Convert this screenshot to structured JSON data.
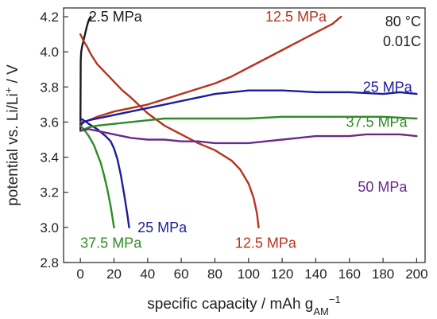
{
  "chart_data": {
    "type": "line",
    "xlabel": "specific capacity / mAh g",
    "xlabel_sub": "AM",
    "xlabel_sup": "−1",
    "ylabel": "potential vs. Li/Li",
    "ylabel_sup": "+",
    "ylabel_tail": " / V",
    "xlim": [
      -10,
      205
    ],
    "ylim": [
      2.8,
      4.25
    ],
    "xticks": [
      0,
      20,
      40,
      60,
      80,
      100,
      120,
      140,
      160,
      180,
      200
    ],
    "yticks": [
      2.8,
      3.0,
      3.2,
      3.4,
      3.6,
      3.8,
      4.0,
      4.2
    ],
    "grid": false,
    "conditions": [
      "80 °C",
      "0.01C"
    ],
    "colors": {
      "2.5 MPa": "#1a1a1a",
      "12.5 MPa": "#b5341c",
      "25 MPa": "#1c1c9c",
      "37.5 MPa": "#2e8b25",
      "50 MPa": "#6a2a8a"
    },
    "series": [
      {
        "name": "2.5 MPa",
        "kind": "charge",
        "x": [
          0,
          0.2,
          0.5,
          1,
          2,
          3,
          4,
          5,
          6
        ],
        "y": [
          3.55,
          3.95,
          4.0,
          4.03,
          4.07,
          4.11,
          4.15,
          4.18,
          4.2
        ]
      },
      {
        "name": "12.5 MPa",
        "kind": "charge",
        "x": [
          0,
          2,
          5,
          10,
          20,
          30,
          40,
          50,
          60,
          70,
          80,
          90,
          100,
          110,
          120,
          130,
          140,
          150,
          155
        ],
        "y": [
          3.6,
          3.6,
          3.61,
          3.63,
          3.66,
          3.68,
          3.7,
          3.73,
          3.76,
          3.79,
          3.82,
          3.86,
          3.91,
          3.96,
          4.01,
          4.06,
          4.11,
          4.16,
          4.2
        ]
      },
      {
        "name": "12.5 MPa",
        "kind": "discharge",
        "x": [
          0,
          1,
          2,
          4,
          6,
          10,
          15,
          20,
          25,
          30,
          40,
          50,
          60,
          70,
          80,
          90,
          95,
          100,
          103,
          105,
          106
        ],
        "y": [
          4.1,
          4.08,
          4.06,
          4.03,
          3.99,
          3.93,
          3.88,
          3.83,
          3.78,
          3.74,
          3.65,
          3.58,
          3.53,
          3.48,
          3.44,
          3.38,
          3.33,
          3.25,
          3.17,
          3.08,
          3.0
        ]
      },
      {
        "name": "25 MPa",
        "kind": "charge",
        "x": [
          0,
          2,
          5,
          10,
          20,
          30,
          40,
          50,
          60,
          70,
          80,
          90,
          100,
          110,
          120,
          140,
          160,
          180,
          190,
          200
        ],
        "y": [
          3.58,
          3.6,
          3.61,
          3.62,
          3.64,
          3.66,
          3.68,
          3.7,
          3.72,
          3.74,
          3.76,
          3.77,
          3.78,
          3.78,
          3.78,
          3.77,
          3.77,
          3.76,
          3.77,
          3.76
        ]
      },
      {
        "name": "25 MPa",
        "kind": "discharge",
        "x": [
          0,
          2,
          5,
          10,
          15,
          18,
          20,
          22,
          24,
          26,
          28,
          29
        ],
        "y": [
          3.62,
          3.61,
          3.59,
          3.56,
          3.52,
          3.49,
          3.45,
          3.39,
          3.3,
          3.19,
          3.07,
          3.0
        ]
      },
      {
        "name": "37.5 MPa",
        "kind": "charge",
        "x": [
          0,
          5,
          10,
          20,
          30,
          40,
          50,
          60,
          70,
          80,
          100,
          120,
          140,
          160,
          180,
          200
        ],
        "y": [
          3.55,
          3.57,
          3.58,
          3.59,
          3.6,
          3.61,
          3.62,
          3.62,
          3.62,
          3.62,
          3.62,
          3.63,
          3.63,
          3.63,
          3.63,
          3.62
        ]
      },
      {
        "name": "37.5 MPa",
        "kind": "discharge",
        "x": [
          0,
          2,
          5,
          8,
          10,
          12,
          14,
          16,
          18,
          19,
          20
        ],
        "y": [
          3.58,
          3.56,
          3.52,
          3.47,
          3.42,
          3.37,
          3.3,
          3.22,
          3.12,
          3.06,
          3.0
        ]
      },
      {
        "name": "50 MPa",
        "kind": "charge",
        "x": [
          0,
          5,
          10,
          20,
          30,
          40,
          50,
          60,
          70,
          80,
          90,
          100,
          110,
          120,
          130,
          140,
          150,
          160,
          170,
          180,
          190,
          200
        ],
        "y": [
          3.55,
          3.56,
          3.55,
          3.53,
          3.51,
          3.5,
          3.5,
          3.49,
          3.49,
          3.48,
          3.48,
          3.48,
          3.49,
          3.5,
          3.51,
          3.52,
          3.52,
          3.52,
          3.53,
          3.53,
          3.53,
          3.52
        ]
      }
    ],
    "series_labels": [
      {
        "text": "2.5 MPa",
        "x": 5,
        "y": 4.2
      },
      {
        "text": "12.5 MPa",
        "x": 110,
        "y": 4.2
      },
      {
        "text": "25 MPa",
        "x": 168,
        "y": 3.8
      },
      {
        "text": "37.5 MPa",
        "x": 158,
        "y": 3.6
      },
      {
        "text": "50 MPa",
        "x": 165,
        "y": 3.23
      },
      {
        "text": "25 MPa",
        "x": 34,
        "y": 3.0
      },
      {
        "text": "37.5 MPa",
        "x": 0,
        "y": 2.91
      },
      {
        "text": "12.5 MPa",
        "x": 92,
        "y": 2.91
      }
    ]
  }
}
